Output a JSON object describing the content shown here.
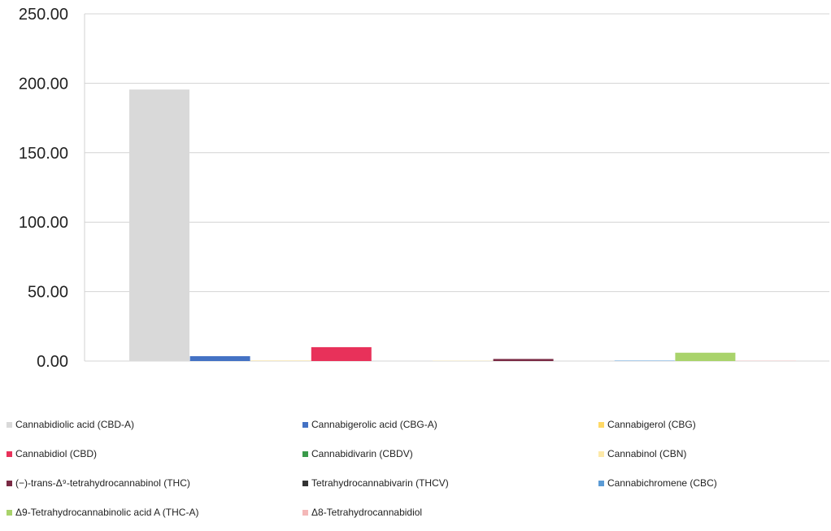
{
  "chart_data": {
    "type": "bar",
    "ylim": [
      0,
      250
    ],
    "yticks": [
      "0.00",
      "50.00",
      "100.00",
      "150.00",
      "200.00",
      "250.00"
    ],
    "grid": true,
    "legend_position": "bottom",
    "series": [
      {
        "name": "Cannabidiolic acid (CBD-A)",
        "value": 195.5,
        "color": "#d9d9d9"
      },
      {
        "name": "Cannabigerolic acid (CBG-A)",
        "value": 3.5,
        "color": "#4472c4"
      },
      {
        "name": "Cannabigerol (CBG)",
        "value": 0.2,
        "color": "#ffd966"
      },
      {
        "name": "Cannabidiol (CBD)",
        "value": 10.0,
        "color": "#e8315a"
      },
      {
        "name": "Cannabidivarin (CBDV)",
        "value": 0.0,
        "color": "#3a9a4a"
      },
      {
        "name": "Cannabinol (CBN)",
        "value": 0.2,
        "color": "#fde9a8"
      },
      {
        "name": "(−)-trans-Δ⁹-tetrahydrocannabinol (THC)",
        "value": 1.5,
        "color": "#7a2a44"
      },
      {
        "name": "Tetrahydrocannabivarin (THCV)",
        "value": 0.0,
        "color": "#333333"
      },
      {
        "name": "Cannabichromene (CBC)",
        "value": 0.3,
        "color": "#5b9bd5"
      },
      {
        "name": "Δ9-Tetrahydrocannabinolic acid A (THC-A)",
        "value": 6.0,
        "color": "#a9d36b"
      },
      {
        "name": "Δ8-Tetrahydrocannabidiol",
        "value": 0.2,
        "color": "#f4b8b8"
      }
    ]
  }
}
